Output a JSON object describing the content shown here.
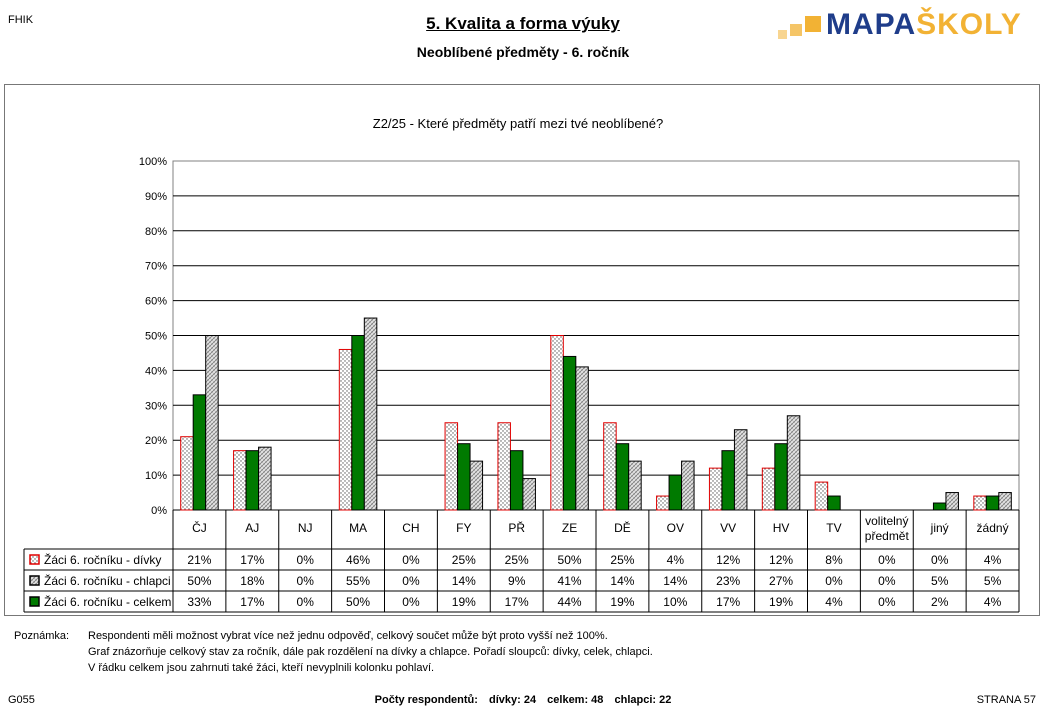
{
  "header": {
    "school": "FHIK",
    "title": "5. Kvalita a forma výuky",
    "subtitle": "Neoblíbené předměty -  6. ročník",
    "logo": {
      "part1": "MAPA",
      "part2": "ŠKOLY"
    }
  },
  "chart_data": {
    "type": "bar",
    "title": "Z2/25 - Které předměty patří mezi tvé neoblíbené?",
    "categories": [
      "ČJ",
      "AJ",
      "NJ",
      "MA",
      "CH",
      "FY",
      "PŘ",
      "ZE",
      "DĚ",
      "OV",
      "VV",
      "HV",
      "TV",
      "volitelný předmět",
      "jiný",
      "žádný"
    ],
    "category_lines": [
      [
        "ČJ"
      ],
      [
        "AJ"
      ],
      [
        "NJ"
      ],
      [
        "MA"
      ],
      [
        "CH"
      ],
      [
        "FY"
      ],
      [
        "PŘ"
      ],
      [
        "ZE"
      ],
      [
        "DĚ"
      ],
      [
        "OV"
      ],
      [
        "VV"
      ],
      [
        "HV"
      ],
      [
        "TV"
      ],
      [
        "volitelný",
        "předmět"
      ],
      [
        "jiný"
      ],
      [
        "žádný"
      ]
    ],
    "series": [
      {
        "name": "Žáci 6. ročníku - dívky",
        "values": [
          21,
          17,
          0,
          46,
          0,
          25,
          25,
          50,
          25,
          4,
          12,
          12,
          8,
          0,
          0,
          4
        ],
        "color": "#ffffff",
        "stroke": "#e00000",
        "pattern": "dots"
      },
      {
        "name": "Žáci 6. ročníku - chlapci",
        "values": [
          50,
          18,
          0,
          55,
          0,
          14,
          9,
          41,
          14,
          14,
          23,
          27,
          0,
          0,
          5,
          5
        ],
        "color": "#d8d8d8",
        "stroke": "#000000",
        "pattern": "hatch"
      },
      {
        "name": "Žáci 6. ročníku - celkem",
        "values": [
          33,
          17,
          0,
          50,
          0,
          19,
          17,
          44,
          19,
          10,
          17,
          19,
          4,
          0,
          2,
          4
        ],
        "color": "#007a00",
        "stroke": "#000000",
        "pattern": "solid"
      }
    ],
    "bar_order": [
      0,
      2,
      1
    ],
    "ylim": [
      0,
      100
    ],
    "yticks": [
      "0%",
      "10%",
      "20%",
      "30%",
      "40%",
      "50%",
      "60%",
      "70%",
      "80%",
      "90%",
      "100%"
    ],
    "grid": true,
    "legend": "table"
  },
  "notes": {
    "label": "Poznámka:",
    "lines": [
      "Respondenti měli možnost vybrat více než jednu odpověď, celkový součet může být proto vyšší než 100%.",
      "Graf znázorňuje celkový stav za ročník, dále pak rozdělení na dívky a chlapce. Pořadí sloupců: dívky, celek, chlapci.",
      "V řádku celkem jsou zahrnuti také žáci, kteří nevyplnili kolonku pohlaví."
    ]
  },
  "footer": {
    "code": "G055",
    "respondents_label": "Počty respondentů:",
    "girls": "dívky: 24",
    "total": "celkem: 48",
    "boys": "chlapci: 22",
    "page": "STRANA  57"
  }
}
